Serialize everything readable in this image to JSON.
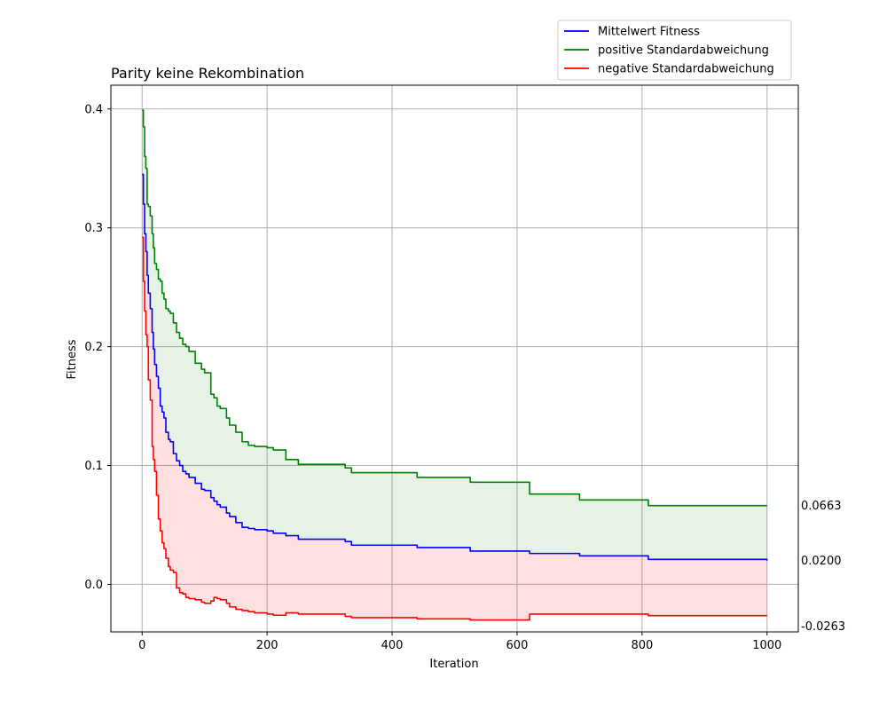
{
  "chart_data": {
    "type": "line",
    "title": "Parity keine Rekombination",
    "xlabel": "Iteration",
    "ylabel": "Fitness",
    "xlim": [
      -50,
      1050
    ],
    "ylim": [
      -0.04,
      0.42
    ],
    "xticks": [
      "0",
      "200",
      "400",
      "600",
      "800",
      "1000"
    ],
    "yticks": [
      "0.0",
      "0.1",
      "0.2",
      "0.3",
      "0.4"
    ],
    "grid": true,
    "legend_position": "top-right, above plot",
    "end_labels": [
      "0.0663",
      "0.0200",
      "-0.0263"
    ],
    "series": [
      {
        "name": "Mittelwert Fitness",
        "color": "#0000ff",
        "x": [
          0,
          2,
          4,
          6,
          8,
          10,
          13,
          16,
          18,
          20,
          23,
          26,
          29,
          32,
          35,
          38,
          42,
          45,
          50,
          55,
          60,
          65,
          70,
          75,
          85,
          95,
          100,
          110,
          115,
          120,
          125,
          135,
          140,
          150,
          160,
          170,
          180,
          200,
          210,
          230,
          250,
          280,
          310,
          325,
          335,
          350,
          400,
          440,
          480,
          525,
          560,
          600,
          620,
          660,
          700,
          750,
          810,
          900,
          1000
        ],
        "y": [
          0.345,
          0.32,
          0.295,
          0.28,
          0.26,
          0.245,
          0.232,
          0.212,
          0.198,
          0.185,
          0.175,
          0.165,
          0.15,
          0.145,
          0.14,
          0.128,
          0.122,
          0.12,
          0.11,
          0.104,
          0.1,
          0.095,
          0.093,
          0.09,
          0.085,
          0.08,
          0.079,
          0.073,
          0.07,
          0.067,
          0.065,
          0.06,
          0.057,
          0.052,
          0.048,
          0.047,
          0.046,
          0.045,
          0.043,
          0.041,
          0.038,
          0.038,
          0.038,
          0.036,
          0.033,
          0.033,
          0.033,
          0.031,
          0.031,
          0.028,
          0.028,
          0.028,
          0.026,
          0.026,
          0.024,
          0.024,
          0.021,
          0.021,
          0.02
        ]
      },
      {
        "name": "positive Standardabweichung",
        "color": "#008000",
        "x": [
          0,
          2,
          4,
          6,
          8,
          10,
          13,
          16,
          18,
          20,
          23,
          26,
          29,
          32,
          35,
          38,
          42,
          45,
          50,
          55,
          60,
          65,
          70,
          75,
          85,
          95,
          100,
          110,
          115,
          120,
          125,
          135,
          140,
          150,
          160,
          170,
          180,
          200,
          210,
          230,
          250,
          280,
          310,
          325,
          335,
          350,
          400,
          440,
          480,
          525,
          560,
          600,
          620,
          660,
          700,
          750,
          810,
          900,
          1000
        ],
        "y": [
          0.399,
          0.385,
          0.36,
          0.35,
          0.32,
          0.318,
          0.31,
          0.295,
          0.283,
          0.27,
          0.265,
          0.257,
          0.255,
          0.245,
          0.24,
          0.232,
          0.23,
          0.228,
          0.22,
          0.212,
          0.207,
          0.202,
          0.2,
          0.196,
          0.186,
          0.181,
          0.178,
          0.16,
          0.157,
          0.15,
          0.148,
          0.14,
          0.134,
          0.128,
          0.12,
          0.117,
          0.116,
          0.115,
          0.113,
          0.105,
          0.101,
          0.101,
          0.101,
          0.098,
          0.094,
          0.094,
          0.094,
          0.09,
          0.09,
          0.086,
          0.086,
          0.086,
          0.076,
          0.076,
          0.071,
          0.071,
          0.0663,
          0.0663,
          0.0663
        ]
      },
      {
        "name": "negative Standardabweichung",
        "color": "#ff0000",
        "x": [
          0,
          2,
          4,
          6,
          8,
          10,
          13,
          16,
          18,
          20,
          23,
          26,
          29,
          32,
          35,
          38,
          42,
          45,
          50,
          55,
          60,
          65,
          70,
          75,
          85,
          95,
          100,
          110,
          115,
          120,
          125,
          135,
          140,
          150,
          160,
          170,
          180,
          200,
          210,
          230,
          250,
          280,
          310,
          325,
          335,
          350,
          400,
          440,
          480,
          525,
          560,
          600,
          620,
          660,
          700,
          750,
          810,
          900,
          1000
        ],
        "y": [
          0.292,
          0.255,
          0.23,
          0.21,
          0.2,
          0.172,
          0.155,
          0.116,
          0.105,
          0.095,
          0.075,
          0.055,
          0.045,
          0.035,
          0.03,
          0.022,
          0.015,
          0.012,
          0.01,
          -0.003,
          -0.007,
          -0.008,
          -0.011,
          -0.012,
          -0.013,
          -0.015,
          -0.016,
          -0.014,
          -0.011,
          -0.012,
          -0.013,
          -0.016,
          -0.019,
          -0.021,
          -0.022,
          -0.023,
          -0.024,
          -0.025,
          -0.026,
          -0.024,
          -0.025,
          -0.025,
          -0.025,
          -0.027,
          -0.028,
          -0.028,
          -0.028,
          -0.029,
          -0.029,
          -0.03,
          -0.03,
          -0.03,
          -0.025,
          -0.025,
          -0.025,
          -0.025,
          -0.0263,
          -0.0263,
          -0.0263
        ]
      }
    ]
  }
}
